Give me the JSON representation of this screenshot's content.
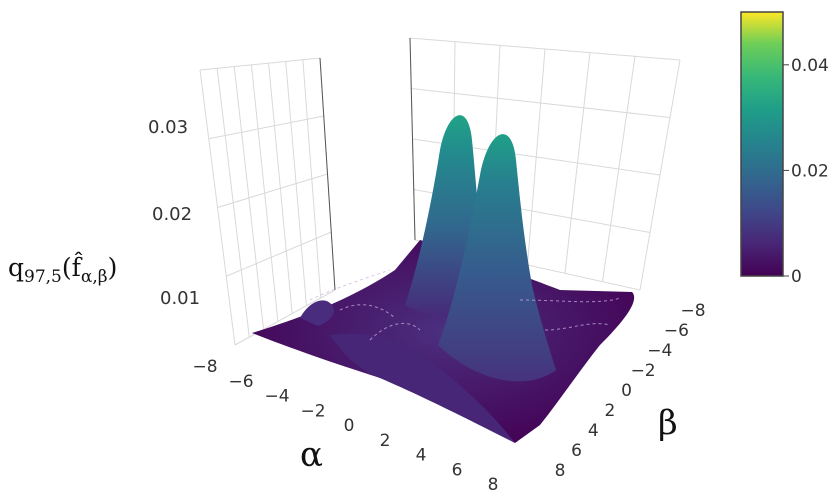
{
  "chart_data": {
    "type": "surface",
    "title": "",
    "x_axis": {
      "label": "α",
      "ticks": [
        "−8",
        "−6",
        "−4",
        "−2",
        "0",
        "2",
        "4",
        "6",
        "8"
      ],
      "range": [
        -8,
        8
      ]
    },
    "y_axis": {
      "label": "β",
      "ticks": [
        "−8",
        "−6",
        "−4",
        "−2",
        "0",
        "2",
        "4",
        "6",
        "8"
      ],
      "range": [
        -8,
        8
      ]
    },
    "z_axis": {
      "label_main": "q",
      "label_sub": "97,5",
      "label_open": "(",
      "label_f": "f̂",
      "label_fsub": "α,β",
      "label_close": ")",
      "ticks": [
        "0.01",
        "0.02",
        "0.03"
      ],
      "range": [
        0,
        0.035
      ]
    },
    "surface": {
      "description_peaks": [
        {
          "alpha": 1.0,
          "beta": -1.0,
          "z": 0.034
        },
        {
          "alpha": 3.0,
          "beta": 0.5,
          "z": 0.031
        }
      ],
      "base_level": 0.002
    },
    "colorbar": {
      "colorscale": "viridis",
      "ticks": [
        "0",
        "0.02",
        "0.04"
      ],
      "range": [
        0,
        0.05
      ]
    },
    "grid": true
  }
}
